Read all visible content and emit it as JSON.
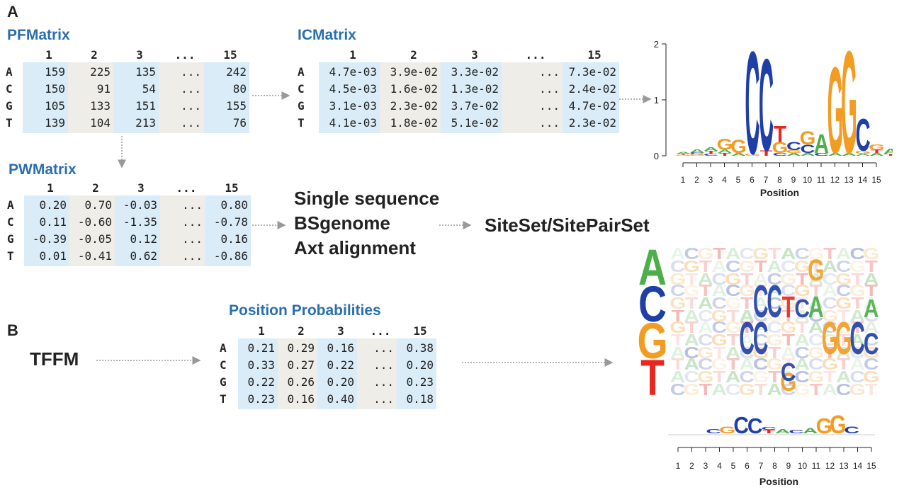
{
  "panels": {
    "a": "A",
    "b": "B"
  },
  "pfm": {
    "title": "PFMatrix",
    "cols": [
      "1",
      "2",
      "3",
      "...",
      "15"
    ],
    "rows": [
      {
        "label": "A",
        "values": [
          "159",
          "225",
          "135",
          "...",
          "242"
        ]
      },
      {
        "label": "C",
        "values": [
          "150",
          "91",
          "54",
          "...",
          "80"
        ]
      },
      {
        "label": "G",
        "values": [
          "105",
          "133",
          "151",
          "...",
          "155"
        ]
      },
      {
        "label": "T",
        "values": [
          "139",
          "104",
          "213",
          "...",
          "76"
        ]
      }
    ]
  },
  "icm": {
    "title": "ICMatrix",
    "cols": [
      "1",
      "2",
      "3",
      "...",
      "15"
    ],
    "rows": [
      {
        "label": "A",
        "values": [
          "4.7e-03",
          "3.9e-02",
          "3.3e-02",
          "...",
          "7.3e-02"
        ]
      },
      {
        "label": "C",
        "values": [
          "4.5e-03",
          "1.6e-02",
          "1.3e-02",
          "...",
          "2.4e-02"
        ]
      },
      {
        "label": "G",
        "values": [
          "3.1e-03",
          "2.3e-02",
          "3.7e-02",
          "...",
          "4.7e-02"
        ]
      },
      {
        "label": "T",
        "values": [
          "4.1e-03",
          "1.8e-02",
          "5.1e-02",
          "...",
          "2.3e-02"
        ]
      }
    ]
  },
  "pwm": {
    "title": "PWMatrix",
    "cols": [
      "1",
      "2",
      "3",
      "...",
      "15"
    ],
    "rows": [
      {
        "label": "A",
        "values": [
          "0.20",
          "0.70",
          "-0.03",
          "...",
          "0.80"
        ]
      },
      {
        "label": "C",
        "values": [
          "0.11",
          "-0.60",
          "-1.35",
          "...",
          "-0.78"
        ]
      },
      {
        "label": "G",
        "values": [
          "-0.39",
          "-0.05",
          "0.12",
          "...",
          "0.16"
        ]
      },
      {
        "label": "T",
        "values": [
          "0.01",
          "-0.41",
          "0.62",
          "...",
          "-0.86"
        ]
      }
    ]
  },
  "inputs": [
    "Single sequence",
    "BSgenome",
    "Axt alignment"
  ],
  "output": "SiteSet/SitePairSet",
  "tffm": {
    "label": "TFFM"
  },
  "pp": {
    "title": "Position Probabilities",
    "cols": [
      "1",
      "2",
      "3",
      "...",
      "15"
    ],
    "rows": [
      {
        "label": "A",
        "values": [
          "0.21",
          "0.29",
          "0.16",
          "...",
          "0.38"
        ]
      },
      {
        "label": "C",
        "values": [
          "0.33",
          "0.27",
          "0.22",
          "...",
          "0.20"
        ]
      },
      {
        "label": "G",
        "values": [
          "0.22",
          "0.26",
          "0.20",
          "...",
          "0.23"
        ]
      },
      {
        "label": "T",
        "values": [
          "0.23",
          "0.16",
          "0.40",
          "...",
          "0.18"
        ]
      }
    ]
  },
  "logo_a": {
    "yticks": [
      "0",
      "1",
      "2"
    ],
    "xticks": [
      "1",
      "2",
      "3",
      "4",
      "5",
      "6",
      "7",
      "8",
      "9",
      "10",
      "11",
      "12",
      "13",
      "14",
      "15"
    ],
    "xlabel": "Position"
  },
  "logo_b": {
    "row_letters": [
      "A",
      "C",
      "G",
      "T"
    ],
    "xticks": [
      "1",
      "2",
      "3",
      "4",
      "5",
      "6",
      "7",
      "8",
      "9",
      "10",
      "11",
      "12",
      "13",
      "14",
      "15"
    ],
    "xlabel": "Position"
  },
  "colors": {
    "A": "#4daf4a",
    "C": "#1f3fa8",
    "G": "#f39c22",
    "T": "#e8271f",
    "title": "#2a6eb0",
    "blue_cell": "#d9ecf7",
    "gray_cell": "#eeede8"
  }
}
